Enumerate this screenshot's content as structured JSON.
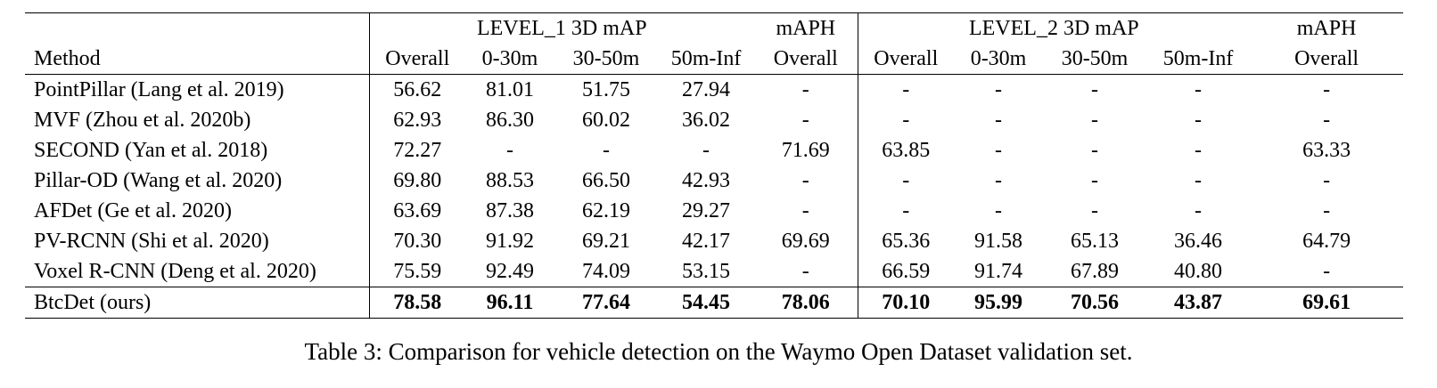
{
  "table": {
    "group_headers": {
      "level1": "LEVEL_1  3D mAP",
      "level1_maph": "mAPH",
      "level2": "LEVEL_2  3D mAP",
      "level2_maph": "mAPH"
    },
    "columns": [
      "Method",
      "Overall",
      "0-30m",
      "30-50m",
      "50m-Inf",
      "Overall",
      "Overall",
      "0-30m",
      "30-50m",
      "50m-Inf",
      "Overall"
    ],
    "rows": [
      [
        "PointPillar (Lang et al. 2019)",
        "56.62",
        "81.01",
        "51.75",
        "27.94",
        "-",
        "-",
        "-",
        "-",
        "-",
        "-"
      ],
      [
        "MVF (Zhou et al. 2020b)",
        "62.93",
        "86.30",
        "60.02",
        "36.02",
        "-",
        "-",
        "-",
        "-",
        "-",
        "-"
      ],
      [
        "SECOND (Yan et al. 2018)",
        "72.27",
        "-",
        "-",
        "-",
        "71.69",
        "63.85",
        "-",
        "-",
        "-",
        "63.33"
      ],
      [
        "Pillar-OD (Wang et al. 2020)",
        "69.80",
        "88.53",
        "66.50",
        "42.93",
        "-",
        "-",
        "-",
        "-",
        "-",
        "-"
      ],
      [
        "AFDet (Ge et al. 2020)",
        "63.69",
        "87.38",
        "62.19",
        "29.27",
        "-",
        "-",
        "-",
        "-",
        "-",
        "-"
      ],
      [
        "PV-RCNN (Shi et al. 2020)",
        "70.30",
        "91.92",
        "69.21",
        "42.17",
        "69.69",
        "65.36",
        "91.58",
        "65.13",
        "36.46",
        "64.79"
      ],
      [
        "Voxel R-CNN (Deng et al. 2020)",
        "75.59",
        "92.49",
        "74.09",
        "53.15",
        "-",
        "66.59",
        "91.74",
        "67.89",
        "40.80",
        "-"
      ]
    ],
    "ours": [
      "BtcDet (ours)",
      "78.58",
      "96.11",
      "77.64",
      "54.45",
      "78.06",
      "70.10",
      "95.99",
      "70.56",
      "43.87",
      "69.61"
    ]
  },
  "caption": "Table 3: Comparison for vehicle detection on the Waymo Open Dataset validation set."
}
